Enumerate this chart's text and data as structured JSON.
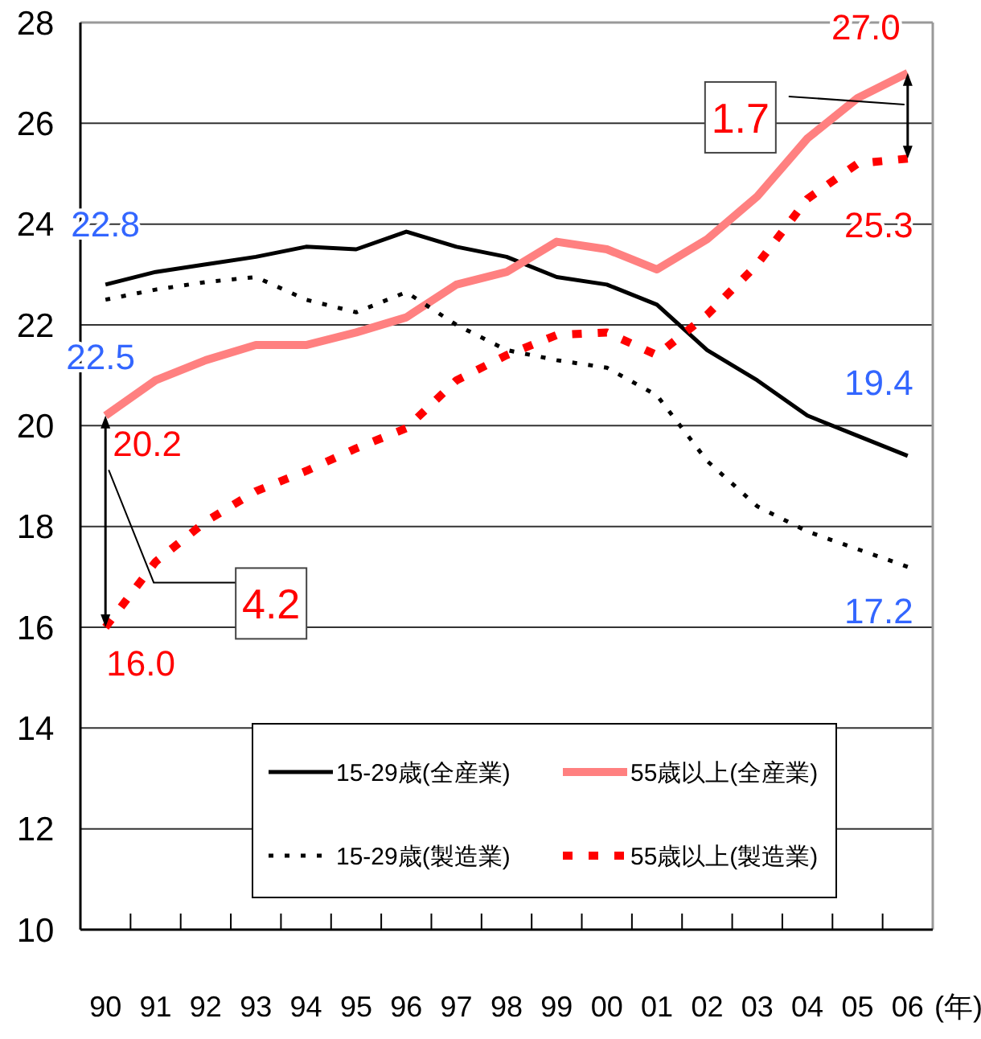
{
  "chart_data": {
    "type": "line",
    "xlabel": "(年)",
    "categories": [
      "90",
      "91",
      "92",
      "93",
      "94",
      "95",
      "96",
      "97",
      "98",
      "99",
      "00",
      "01",
      "02",
      "03",
      "04",
      "05",
      "06"
    ],
    "series": [
      {
        "name": "15-29歳(全産業)",
        "color": "#000000",
        "line_style": "solid",
        "values": [
          22.8,
          23.05,
          23.2,
          23.35,
          23.55,
          23.5,
          23.85,
          23.55,
          23.35,
          22.95,
          22.8,
          22.4,
          21.5,
          20.9,
          20.2,
          19.8,
          19.4
        ]
      },
      {
        "name": "55歳以上(全産業)",
        "color": "#ff8080",
        "line_style": "solid",
        "values": [
          20.2,
          20.9,
          21.3,
          21.6,
          21.6,
          21.85,
          22.15,
          22.8,
          23.05,
          23.65,
          23.5,
          23.1,
          23.7,
          24.55,
          25.7,
          26.5,
          27.0
        ]
      },
      {
        "name": "15-29歳(製造業)",
        "color": "#000000",
        "line_style": "dotted",
        "values": [
          22.5,
          22.7,
          22.85,
          22.95,
          22.5,
          22.25,
          22.65,
          22.0,
          21.5,
          21.3,
          21.15,
          20.6,
          19.3,
          18.4,
          17.9,
          17.55,
          17.2
        ]
      },
      {
        "name": "55歳以上(製造業)",
        "color": "#ff0000",
        "line_style": "dotted",
        "values": [
          16.0,
          17.3,
          18.1,
          18.7,
          19.1,
          19.55,
          19.95,
          20.9,
          21.4,
          21.8,
          21.85,
          21.4,
          22.2,
          23.2,
          24.5,
          25.2,
          25.3
        ]
      }
    ],
    "ylim": [
      10,
      28
    ],
    "yticks": [
      10,
      12,
      14,
      16,
      18,
      20,
      22,
      24,
      26,
      28
    ],
    "grid": "y",
    "legend": "bottom",
    "marker": "none",
    "annotations": [
      {
        "text": "22.8",
        "x": "90",
        "y": 22.8
      },
      {
        "text": "22.5",
        "x": "90",
        "y": 22.5
      },
      {
        "text": "20.2",
        "x": "90",
        "y": 20.2
      },
      {
        "text": "16.0",
        "x": "90",
        "y": 16.0
      },
      {
        "text": "27.0",
        "x": "06",
        "y": 27.0
      },
      {
        "text": "25.3",
        "x": "06",
        "y": 25.3
      },
      {
        "text": "19.4",
        "x": "06",
        "y": 19.4
      },
      {
        "text": "17.2",
        "x": "06",
        "y": 17.2
      },
      "4.2",
      "1.7"
    ]
  }
}
